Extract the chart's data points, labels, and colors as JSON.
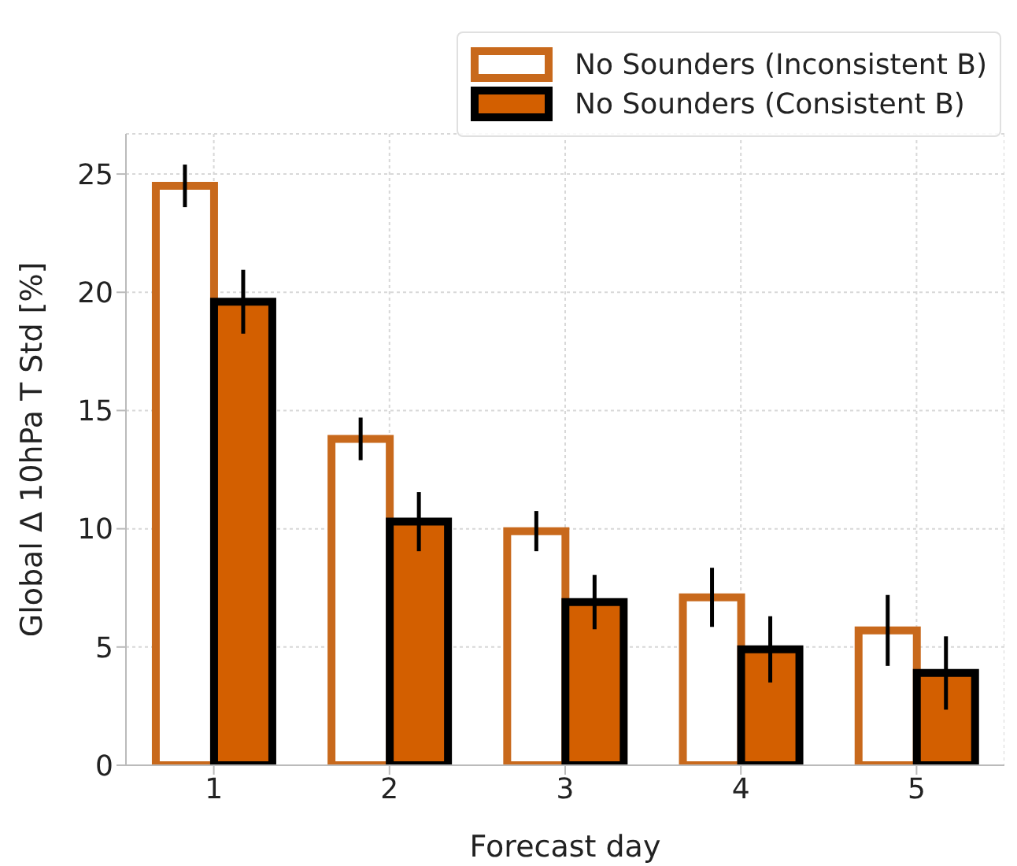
{
  "chart_data": {
    "type": "bar",
    "xlabel": "Forecast day",
    "ylabel": "Global Δ 10hPa T Std [%]",
    "categories": [
      "1",
      "2",
      "3",
      "4",
      "5"
    ],
    "series": [
      {
        "name": "No Sounders (Inconsistent B)",
        "color": "#c8691c",
        "values": [
          24.5,
          13.8,
          9.9,
          7.1,
          5.7
        ],
        "errors": [
          0.9,
          0.9,
          0.85,
          1.25,
          1.5
        ]
      },
      {
        "name": "No Sounders (Consistent B)",
        "color": "#d35f00",
        "values": [
          19.6,
          10.3,
          6.9,
          4.9,
          3.9
        ],
        "errors": [
          1.35,
          1.25,
          1.15,
          1.4,
          1.55
        ]
      }
    ],
    "ylim": [
      0,
      26.7
    ],
    "yticks": [
      0,
      5,
      10,
      15,
      20,
      25
    ],
    "grid": true,
    "legend": "top right"
  }
}
